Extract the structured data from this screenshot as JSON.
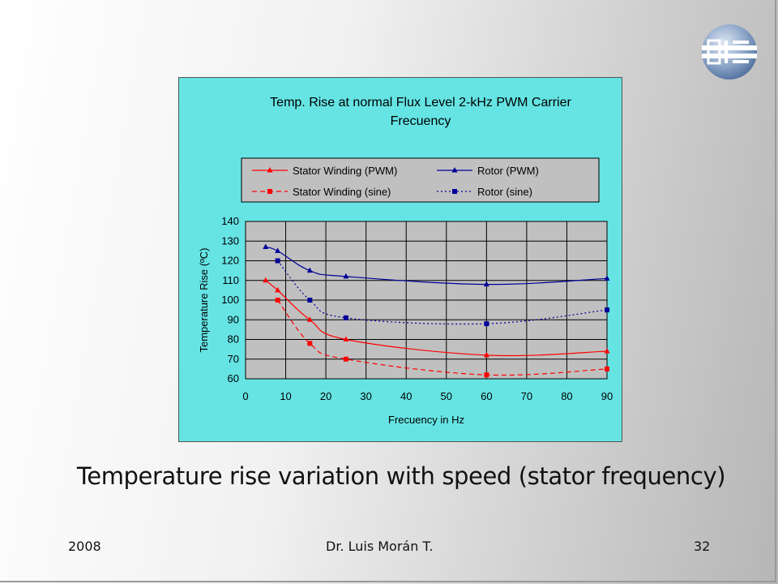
{
  "slide": {
    "caption": "Temperature rise variation with speed (stator frequency)",
    "footer": {
      "year": "2008",
      "author": "Dr. Luis Morán T.",
      "page": "32"
    },
    "logo_icon": "die-logo-icon"
  },
  "chart_data": {
    "type": "line",
    "title_line1": "Temp. Rise at normal Flux Level 2-kHz PWM Carrier",
    "title_line2": "Frecuency",
    "xlabel": "Frecuency in Hz",
    "ylabel": "Temperature Rise (ºC)",
    "xlim": [
      0,
      90
    ],
    "ylim": [
      60,
      140
    ],
    "xticks": [
      0,
      10,
      20,
      30,
      40,
      50,
      60,
      70,
      80,
      90
    ],
    "yticks": [
      60,
      70,
      80,
      90,
      100,
      110,
      120,
      130,
      140
    ],
    "grid": true,
    "legend_placement": "top",
    "colors": {
      "plot_background": "#c0c0c0",
      "chart_background": "#66e4e4",
      "red": "#ff0000",
      "blue": "#000099"
    },
    "series": [
      {
        "name": "Stator Winding (PWM)",
        "color": "#ff0000",
        "dash": "solid",
        "marker": "triangle",
        "x": [
          5,
          8,
          16,
          25,
          60,
          90
        ],
        "y": [
          110,
          105,
          90,
          80,
          72,
          74
        ]
      },
      {
        "name": "Rotor (PWM)",
        "color": "#000099",
        "dash": "solid",
        "marker": "triangle",
        "x": [
          5,
          8,
          16,
          25,
          60,
          90
        ],
        "y": [
          127,
          125,
          115,
          112,
          108,
          111
        ]
      },
      {
        "name": "Stator Winding (sine)",
        "color": "#ff0000",
        "dash": "dashed",
        "marker": "square",
        "x": [
          8,
          16,
          25,
          60,
          90
        ],
        "y": [
          100,
          78,
          70,
          62,
          65
        ]
      },
      {
        "name": "Rotor (sine)",
        "color": "#000099",
        "dash": "dotted",
        "marker": "square",
        "x": [
          8,
          16,
          25,
          60,
          90
        ],
        "y": [
          120,
          100,
          91,
          88,
          95
        ]
      }
    ]
  }
}
